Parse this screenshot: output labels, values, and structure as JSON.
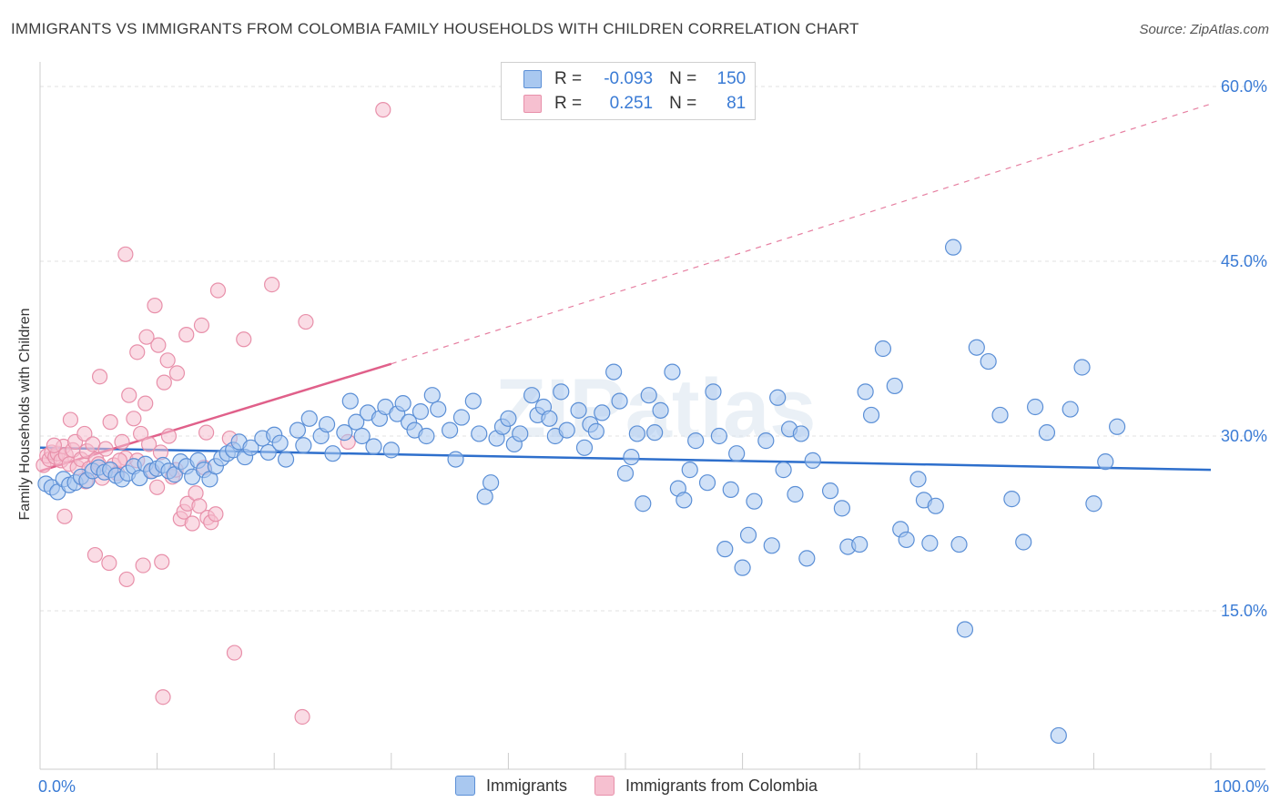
{
  "title": "IMMIGRANTS VS IMMIGRANTS FROM COLOMBIA FAMILY HOUSEHOLDS WITH CHILDREN CORRELATION CHART",
  "source": "Source: ZipAtlas.com",
  "watermark": "ZIPatlas",
  "colors": {
    "blue_fill": "#a9c8f0",
    "blue_stroke": "#5b8fd6",
    "blue_line": "#2e6fcc",
    "pink_fill": "#f6c0d0",
    "pink_stroke": "#e890aa",
    "pink_line": "#e0608a",
    "axis_text": "#3a7bd5",
    "grid": "#e0e0e0"
  },
  "legend": {
    "rows": [
      {
        "r_label": "R =",
        "r_value": "-0.093",
        "n_label": "N =",
        "n_value": "150",
        "color": "#a9c8f0"
      },
      {
        "r_label": "R =",
        "r_value": "0.251",
        "n_label": "N =",
        "n_value": "81",
        "color": "#f6c0d0"
      }
    ]
  },
  "bottom_legend": [
    {
      "label": "Immigrants",
      "color": "#a9c8f0"
    },
    {
      "label": "Immigrants from Colombia",
      "color": "#f6c0d0"
    }
  ],
  "chart_data": {
    "type": "scatter",
    "title": "IMMIGRANTS VS IMMIGRANTS FROM COLOMBIA FAMILY HOUSEHOLDS WITH CHILDREN CORRELATION CHART",
    "xlabel": "",
    "ylabel": "Family Households with Children",
    "xlim": [
      0,
      100
    ],
    "ylim": [
      0,
      60
    ],
    "x_tick_labels": [
      "0.0%",
      "100.0%"
    ],
    "y_ticks": [
      15,
      30,
      45,
      60
    ],
    "y_tick_labels": [
      "15.0%",
      "30.0%",
      "45.0%",
      "60.0%"
    ],
    "grid": true,
    "legend_position": "top-center",
    "series": [
      {
        "name": "Immigrants",
        "r": -0.093,
        "n": 150,
        "trend": {
          "x0": 0,
          "y0": 29.0,
          "x1": 100,
          "y1": 27.1
        },
        "points": [
          [
            0.5,
            25.9
          ],
          [
            1.0,
            25.6
          ],
          [
            1.5,
            25.2
          ],
          [
            2.0,
            26.3
          ],
          [
            2.5,
            25.8
          ],
          [
            3.0,
            26.0
          ],
          [
            3.5,
            26.5
          ],
          [
            4.0,
            26.2
          ],
          [
            4.5,
            27.0
          ],
          [
            5.0,
            27.3
          ],
          [
            5.5,
            26.9
          ],
          [
            6.0,
            27.1
          ],
          [
            6.5,
            26.6
          ],
          [
            7.0,
            26.3
          ],
          [
            7.5,
            26.8
          ],
          [
            8.0,
            27.4
          ],
          [
            8.5,
            26.4
          ],
          [
            9.0,
            27.6
          ],
          [
            9.5,
            27.0
          ],
          [
            10.0,
            27.2
          ],
          [
            10.5,
            27.5
          ],
          [
            11.0,
            27.0
          ],
          [
            11.5,
            26.7
          ],
          [
            12.0,
            27.8
          ],
          [
            12.5,
            27.4
          ],
          [
            13.0,
            26.5
          ],
          [
            13.5,
            27.9
          ],
          [
            14.0,
            27.1
          ],
          [
            14.5,
            26.3
          ],
          [
            15.0,
            27.4
          ],
          [
            15.5,
            28.1
          ],
          [
            16.0,
            28.5
          ],
          [
            16.5,
            28.8
          ],
          [
            17.0,
            29.5
          ],
          [
            17.5,
            28.2
          ],
          [
            18.0,
            29.0
          ],
          [
            19.0,
            29.8
          ],
          [
            19.5,
            28.6
          ],
          [
            20.0,
            30.1
          ],
          [
            20.5,
            29.4
          ],
          [
            21.0,
            28.0
          ],
          [
            22.0,
            30.5
          ],
          [
            22.5,
            29.2
          ],
          [
            23.0,
            31.5
          ],
          [
            24.0,
            30.0
          ],
          [
            24.5,
            31.0
          ],
          [
            25.0,
            28.5
          ],
          [
            26.0,
            30.3
          ],
          [
            26.5,
            33.0
          ],
          [
            27.0,
            31.2
          ],
          [
            27.5,
            30.0
          ],
          [
            28.0,
            32.0
          ],
          [
            28.5,
            29.1
          ],
          [
            29.0,
            31.5
          ],
          [
            29.5,
            32.5
          ],
          [
            30.0,
            28.8
          ],
          [
            30.5,
            31.9
          ],
          [
            31.0,
            32.8
          ],
          [
            31.5,
            31.2
          ],
          [
            32.0,
            30.5
          ],
          [
            32.5,
            32.1
          ],
          [
            33.0,
            30.0
          ],
          [
            33.5,
            33.5
          ],
          [
            34.0,
            32.3
          ],
          [
            35.0,
            30.5
          ],
          [
            35.5,
            28.0
          ],
          [
            36.0,
            31.6
          ],
          [
            37.0,
            33.0
          ],
          [
            37.5,
            30.2
          ],
          [
            38.0,
            24.8
          ],
          [
            38.5,
            26.0
          ],
          [
            39.0,
            29.8
          ],
          [
            39.5,
            30.8
          ],
          [
            40.0,
            31.5
          ],
          [
            40.5,
            29.3
          ],
          [
            41.0,
            30.2
          ],
          [
            42.0,
            33.5
          ],
          [
            42.5,
            31.8
          ],
          [
            43.0,
            32.5
          ],
          [
            43.5,
            31.5
          ],
          [
            44.0,
            30.0
          ],
          [
            44.5,
            33.8
          ],
          [
            45.0,
            30.5
          ],
          [
            46.0,
            32.2
          ],
          [
            46.5,
            29.0
          ],
          [
            47.0,
            31.0
          ],
          [
            47.5,
            30.4
          ],
          [
            48.0,
            32.0
          ],
          [
            49.0,
            35.5
          ],
          [
            49.5,
            33.0
          ],
          [
            50.0,
            26.8
          ],
          [
            50.5,
            28.2
          ],
          [
            51.0,
            30.2
          ],
          [
            51.5,
            24.2
          ],
          [
            52.0,
            33.5
          ],
          [
            52.5,
            30.3
          ],
          [
            53.0,
            32.2
          ],
          [
            54.0,
            35.5
          ],
          [
            54.5,
            25.5
          ],
          [
            55.0,
            24.5
          ],
          [
            55.5,
            27.1
          ],
          [
            56.0,
            29.6
          ],
          [
            57.0,
            26.0
          ],
          [
            57.5,
            33.8
          ],
          [
            58.0,
            30.0
          ],
          [
            58.5,
            20.3
          ],
          [
            59.0,
            25.4
          ],
          [
            59.5,
            28.5
          ],
          [
            60.0,
            18.7
          ],
          [
            60.5,
            21.5
          ],
          [
            61.0,
            24.4
          ],
          [
            62.0,
            29.6
          ],
          [
            62.5,
            20.6
          ],
          [
            63.0,
            33.3
          ],
          [
            63.5,
            27.1
          ],
          [
            64.0,
            30.6
          ],
          [
            64.5,
            25.0
          ],
          [
            65.0,
            30.2
          ],
          [
            65.5,
            19.5
          ],
          [
            66.0,
            27.9
          ],
          [
            67.5,
            25.3
          ],
          [
            68.5,
            23.8
          ],
          [
            69.0,
            20.5
          ],
          [
            70.0,
            20.7
          ],
          [
            70.5,
            33.8
          ],
          [
            71.0,
            31.8
          ],
          [
            72.0,
            37.5
          ],
          [
            73.0,
            34.3
          ],
          [
            73.5,
            22.0
          ],
          [
            74.0,
            21.1
          ],
          [
            75.0,
            26.3
          ],
          [
            75.5,
            24.5
          ],
          [
            76.0,
            20.8
          ],
          [
            76.5,
            24.0
          ],
          [
            78.0,
            46.2
          ],
          [
            78.5,
            20.7
          ],
          [
            79.0,
            13.4
          ],
          [
            80.0,
            37.6
          ],
          [
            81.0,
            36.4
          ],
          [
            82.0,
            31.8
          ],
          [
            83.0,
            24.6
          ],
          [
            84.0,
            20.9
          ],
          [
            85.0,
            32.5
          ],
          [
            86.0,
            30.3
          ],
          [
            87.0,
            4.3
          ],
          [
            88.0,
            32.3
          ],
          [
            89.0,
            35.9
          ],
          [
            90.0,
            24.2
          ],
          [
            91.0,
            27.8
          ],
          [
            92.0,
            30.8
          ]
        ]
      },
      {
        "name": "Immigrants from Colombia",
        "r": 0.251,
        "n": 81,
        "trend": {
          "x0": 0,
          "y0": 27.0,
          "x1": 30,
          "y1": 36.2
        },
        "trend_extension": {
          "x0": 30,
          "y0": 36.2,
          "x1": 100,
          "y1": 58.5
        },
        "points": [
          [
            0.3,
            27.5
          ],
          [
            0.6,
            28.3
          ],
          [
            0.8,
            28.0
          ],
          [
            1.0,
            28.6
          ],
          [
            1.3,
            28.2
          ],
          [
            1.5,
            28.5
          ],
          [
            1.8,
            27.9
          ],
          [
            2.0,
            29.1
          ],
          [
            2.2,
            28.4
          ],
          [
            2.5,
            27.6
          ],
          [
            2.8,
            28.8
          ],
          [
            3.0,
            29.5
          ],
          [
            3.2,
            27.3
          ],
          [
            3.5,
            28.0
          ],
          [
            3.8,
            30.2
          ],
          [
            4.0,
            28.7
          ],
          [
            4.2,
            27.2
          ],
          [
            4.5,
            29.3
          ],
          [
            4.8,
            28.0
          ],
          [
            5.0,
            27.6
          ],
          [
            5.3,
            26.4
          ],
          [
            5.6,
            28.9
          ],
          [
            6.0,
            31.2
          ],
          [
            6.3,
            27.5
          ],
          [
            6.6,
            26.8
          ],
          [
            7.0,
            29.5
          ],
          [
            7.3,
            28.1
          ],
          [
            7.6,
            33.5
          ],
          [
            8.0,
            31.5
          ],
          [
            8.3,
            27.9
          ],
          [
            8.6,
            30.2
          ],
          [
            9.0,
            32.8
          ],
          [
            9.3,
            29.3
          ],
          [
            9.6,
            27.0
          ],
          [
            10.0,
            25.6
          ],
          [
            10.3,
            28.6
          ],
          [
            10.6,
            34.6
          ],
          [
            11.0,
            30.0
          ],
          [
            11.3,
            26.5
          ],
          [
            11.6,
            27.1
          ],
          [
            12.0,
            22.9
          ],
          [
            12.3,
            23.5
          ],
          [
            12.6,
            24.2
          ],
          [
            13.0,
            22.5
          ],
          [
            13.3,
            25.1
          ],
          [
            13.6,
            24.0
          ],
          [
            14.0,
            27.3
          ],
          [
            14.3,
            23.0
          ],
          [
            14.6,
            22.6
          ],
          [
            15.0,
            23.3
          ],
          [
            2.1,
            23.1
          ],
          [
            4.7,
            19.8
          ],
          [
            5.9,
            19.1
          ],
          [
            7.4,
            17.7
          ],
          [
            8.8,
            18.9
          ],
          [
            10.4,
            19.2
          ],
          [
            9.8,
            41.2
          ],
          [
            10.1,
            37.8
          ],
          [
            10.9,
            36.5
          ],
          [
            11.7,
            35.4
          ],
          [
            12.5,
            38.7
          ],
          [
            13.8,
            39.5
          ],
          [
            15.2,
            42.5
          ],
          [
            17.4,
            38.3
          ],
          [
            19.8,
            43.0
          ],
          [
            22.7,
            39.8
          ],
          [
            7.3,
            45.6
          ],
          [
            5.1,
            35.1
          ],
          [
            8.3,
            37.2
          ],
          [
            9.1,
            38.5
          ],
          [
            2.6,
            31.4
          ],
          [
            6.8,
            27.9
          ],
          [
            3.9,
            26.1
          ],
          [
            1.2,
            29.2
          ],
          [
            16.2,
            29.8
          ],
          [
            14.2,
            30.3
          ],
          [
            26.3,
            29.5
          ],
          [
            16.6,
            11.4
          ],
          [
            10.5,
            7.6
          ],
          [
            22.4,
            5.9
          ],
          [
            29.3,
            58.0
          ]
        ]
      }
    ]
  }
}
